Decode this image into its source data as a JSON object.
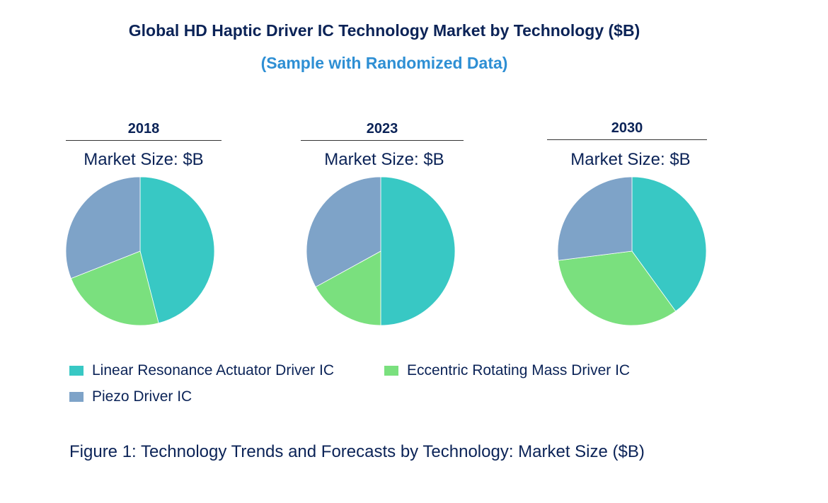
{
  "chart_data": {
    "type": "pie",
    "title": "Global HD Haptic Driver IC Technology Market by Technology ($B)",
    "subtitle": "(Sample with Randomized Data)",
    "caption": "Figure 1: Technology Trends and Forecasts by Technology: Market Size ($B)",
    "legend_position": "bottom-left",
    "series_names": [
      "Linear Resonance Actuator Driver IC",
      "Eccentric Rotating Mass Driver IC",
      "Piezo Driver IC"
    ],
    "colors": [
      "#38c8c4",
      "#7ae07e",
      "#7ea3c8"
    ],
    "pies": [
      {
        "year": "2018",
        "label": "Market Size: $B",
        "shares": [
          46,
          23,
          31
        ]
      },
      {
        "year": "2023",
        "label": "Market Size: $B",
        "shares": [
          50,
          17,
          33
        ]
      },
      {
        "year": "2030",
        "label": "Market Size: $B",
        "shares": [
          40,
          33,
          27
        ]
      }
    ]
  }
}
